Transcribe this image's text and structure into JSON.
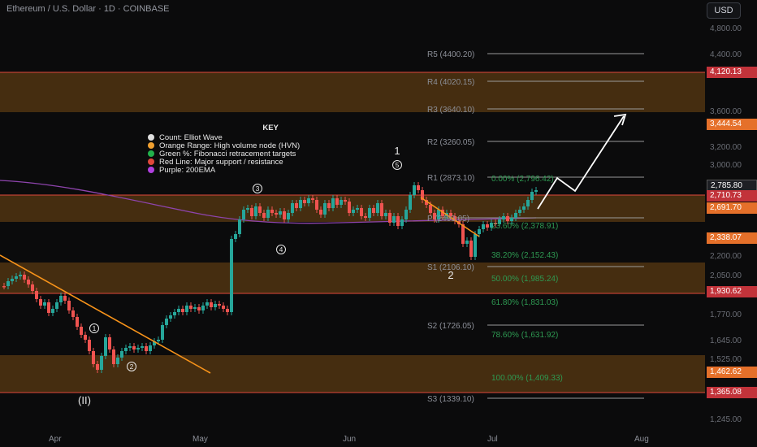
{
  "header": {
    "symbol_title": "Ethereum / U.S. Dollar · 1D · COINBASE",
    "currency_button": "USD"
  },
  "key": {
    "title": "KEY",
    "items": [
      {
        "label": "Count: Elliot Wave",
        "color": "#e0e0e0"
      },
      {
        "label": "Orange Range: High volume node (HVN)",
        "color": "#f0a030"
      },
      {
        "label": "Green %: Fibonacci retracement targets",
        "color": "#22b14c"
      },
      {
        "label": "Red Line: Major support / resistance",
        "color": "#e0483c"
      },
      {
        "label": "Purple: 200EMA",
        "color": "#b040e0"
      }
    ]
  },
  "price_axis": {
    "ticks": [
      "4,800.00",
      "4,400.00",
      "3,600.00",
      "3,200.00",
      "3,000.00",
      "2,200.00",
      "2,050.00",
      "1,770.00",
      "1,645.00",
      "1,525.00",
      "1,245.00"
    ],
    "labels": [
      {
        "text": "4,120.13",
        "color": "#c2333a"
      },
      {
        "text": "3,444.54",
        "color": "#e5702a"
      },
      {
        "text": "2,785.80",
        "color": "#1e1f24"
      },
      {
        "text": "2,710.73",
        "color": "#c2333a"
      },
      {
        "text": "2,691.70",
        "color": "#e5702a"
      },
      {
        "text": "2,338.07",
        "color": "#e5702a"
      },
      {
        "text": "1,930.62",
        "color": "#c2333a"
      },
      {
        "text": "1,462.62",
        "color": "#e5702a"
      },
      {
        "text": "1,365.08",
        "color": "#c2333a"
      }
    ]
  },
  "time_axis": {
    "labels": [
      "Apr",
      "May",
      "Jun",
      "Jul",
      "Aug"
    ]
  },
  "pivots": [
    "R5 (4400.20)",
    "R4 (4020.15)",
    "R3 (3640.10)",
    "R2 (3260.05)",
    "R1 (2873.10)",
    "P (2493.05)",
    "S1 (2106.10)",
    "S2 (1726.05)",
    "S3 (1339.10)"
  ],
  "fib_levels": [
    "0.00% (2,796.42)",
    "23.60% (2,378.91)",
    "38.20% (2,152.43)",
    "50.00% (1,985.24)",
    "61.80% (1,831.03)",
    "78.60% (1,631.92)",
    "100.00% (1,409.33)"
  ],
  "waves": {
    "circled": [
      "1",
      "2",
      "3",
      "4",
      "5"
    ],
    "plain": [
      "(II)",
      "1",
      "2"
    ]
  },
  "colors": {
    "up": "#26a69a",
    "down": "#ef5350",
    "hvn": "#f0a030",
    "support": "#e0483c",
    "ema": "#9b59b6",
    "trend": "#f7931a"
  }
}
